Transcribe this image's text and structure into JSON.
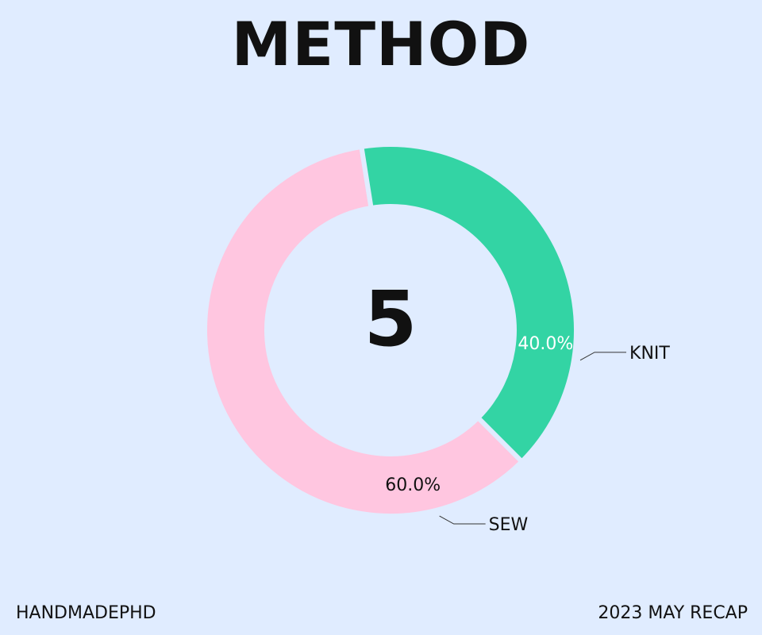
{
  "header": {
    "title": "METHOD"
  },
  "chart_data": {
    "type": "pie",
    "variant": "donut",
    "center_value": "5",
    "slices": [
      {
        "label": "SEW",
        "value": 60.0,
        "percent_label": "60.0%",
        "color": "#ffc6e0",
        "label_color": "#111111"
      },
      {
        "label": "KNIT",
        "value": 40.0,
        "percent_label": "40.0%",
        "color": "#33d4a4",
        "label_color": "#ffffff"
      }
    ],
    "start_angle_deg": 135,
    "direction": "clockwise",
    "background_color": "#e0ecff",
    "gap_color": "#e0ecff"
  },
  "footer": {
    "left": "HANDMADEPHD",
    "right": "2023 MAY RECAP"
  }
}
